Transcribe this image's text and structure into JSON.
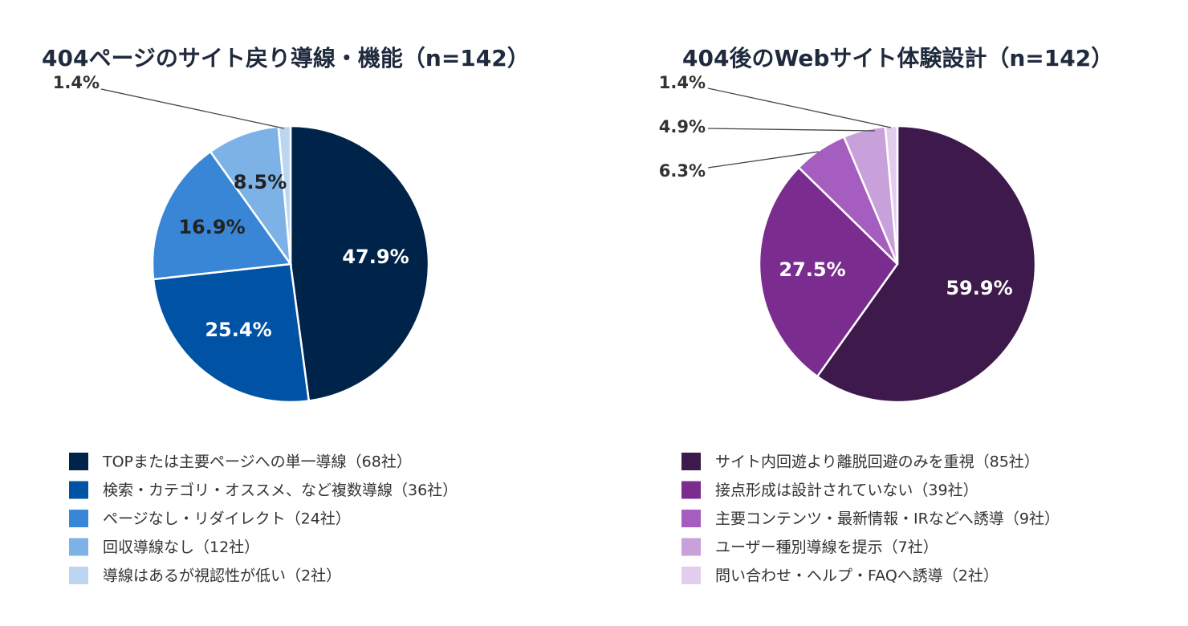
{
  "chart_data": [
    {
      "type": "pie",
      "title": "404ページのサイト戻り導線・機能（n=142）",
      "slices": [
        {
          "label": "TOPまたは主要ページへの単一導線（68社）",
          "value": 68,
          "percent_label": "47.9%",
          "color": "#002349",
          "label_color": "#ffffff"
        },
        {
          "label": "検索・カテゴリ・オススメ、など複数導線（36社）",
          "value": 36,
          "percent_label": "25.4%",
          "color": "#0052a5",
          "label_color": "#ffffff"
        },
        {
          "label": "ページなし・リダイレクト（24社）",
          "value": 24,
          "percent_label": "16.9%",
          "color": "#3a86d6",
          "label_color": "#222222"
        },
        {
          "label": "回収導線なし（12社）",
          "value": 12,
          "percent_label": "8.5%",
          "color": "#7db2e6",
          "label_color": "#222222"
        },
        {
          "label": "導線はあるが視認性が低い（2社）",
          "value": 2,
          "percent_label": "1.4%",
          "color": "#bcd6f1",
          "label_color": "#333333"
        }
      ]
    },
    {
      "type": "pie",
      "title": "404後のWebサイト体験設計（n=142）",
      "slices": [
        {
          "label": "サイト内回遊より離脱回避のみを重視（85社）",
          "value": 85,
          "percent_label": "59.9%",
          "color": "#3d1a4b",
          "label_color": "#ffffff"
        },
        {
          "label": "接点形成は設計されていない（39社）",
          "value": 39,
          "percent_label": "27.5%",
          "color": "#7b2d8f",
          "label_color": "#ffffff"
        },
        {
          "label": "主要コンテンツ・最新情報・IRなどへ誘導（9社）",
          "value": 9,
          "percent_label": "6.3%",
          "color": "#a55ec0",
          "label_color": "#333333"
        },
        {
          "label": "ユーザー種別導線を提示（7社）",
          "value": 7,
          "percent_label": "4.9%",
          "color": "#c8a0da",
          "label_color": "#333333"
        },
        {
          "label": "問い合わせ・ヘルプ・FAQへ誘導（2社）",
          "value": 2,
          "percent_label": "1.4%",
          "color": "#e3cdee",
          "label_color": "#333333"
        }
      ]
    }
  ]
}
